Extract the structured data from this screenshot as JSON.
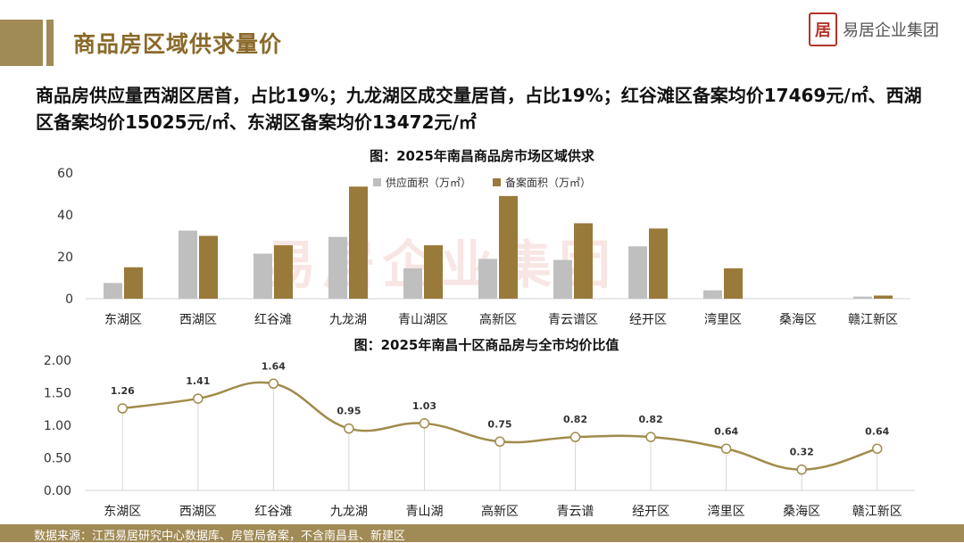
{
  "header": {
    "title": "商品房区域供求量价",
    "logo_glyph": "居",
    "logo_text": "易居企业集团"
  },
  "summary": "商品房供应量西湖区居首，占比19%；九龙湖区成交量居首，占比19%；红谷滩区备案均价17469元/㎡、西湖区备案均价15025元/㎡、东湖区备案均价13472元/㎡",
  "watermark": "易居企业集团",
  "footer": {
    "source": "数据来源：江西易居研究中心数据库、房管局备案，不含南昌县、新建区"
  },
  "colors": {
    "supply": "#bfbfbf",
    "filed": "#9a7a3a",
    "line": "#a08c4a"
  },
  "chart_data": [
    {
      "type": "bar",
      "title": "图：2025年南昌商品房市场区域供求",
      "categories": [
        "东湖区",
        "西湖区",
        "红谷滩",
        "九龙湖",
        "青山湖区",
        "高新区",
        "青云谱区",
        "经开区",
        "湾里区",
        "桑海区",
        "赣江新区"
      ],
      "series": [
        {
          "name": "供应面积（万㎡）",
          "values": [
            7.5,
            32.5,
            21.5,
            29.5,
            14.5,
            19,
            18.5,
            25,
            4,
            0,
            1
          ]
        },
        {
          "name": "备案面积（万㎡）",
          "values": [
            15,
            30,
            25.5,
            53.5,
            25.5,
            49,
            36,
            33.5,
            14.5,
            0,
            1.5
          ]
        }
      ],
      "ylim": [
        0,
        60
      ],
      "yticks": [
        "0",
        "20",
        "40",
        "60"
      ],
      "legend": "top-center",
      "grid": false
    },
    {
      "type": "line",
      "title": "图：2025年南昌十区商品房与全市均价比值",
      "categories": [
        "东湖区",
        "西湖区",
        "红谷滩",
        "九龙湖",
        "青山湖",
        "高新区",
        "青云谱",
        "经开区",
        "湾里区",
        "桑海区",
        "赣江新区"
      ],
      "values": [
        1.26,
        1.41,
        1.64,
        0.95,
        1.03,
        0.75,
        0.82,
        0.82,
        0.64,
        0.32,
        0.64
      ],
      "labels": [
        "1.26",
        "1.41",
        "1.64",
        "0.95",
        "1.03",
        "0.75",
        "0.82",
        "0.82",
        "0.64",
        "0.32",
        "0.64"
      ],
      "ylim": [
        0,
        2
      ],
      "yticks": [
        "0.00",
        "0.50",
        "1.00",
        "1.50",
        "2.00"
      ],
      "grid": false
    }
  ]
}
